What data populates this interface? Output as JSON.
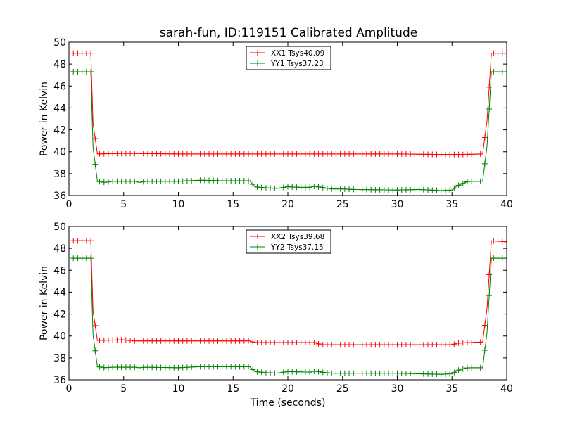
{
  "title": "sarah-fun, ID:119151 Calibrated Amplitude",
  "chart_data": [
    {
      "type": "line",
      "ylabel": "Power in Kelvin",
      "xlabel": "",
      "xlim": [
        0,
        40
      ],
      "ylim": [
        36,
        50
      ],
      "xticks": [
        "0",
        "5",
        "10",
        "15",
        "20",
        "25",
        "30",
        "35",
        "40"
      ],
      "yticks": [
        "36",
        "38",
        "40",
        "42",
        "44",
        "46",
        "48",
        "50"
      ],
      "grid": false,
      "legend": "upper-center",
      "series": [
        {
          "name": "XX1 Tsys40.09",
          "color": "#ff0000",
          "points": [
            [
              0.4,
              49.0
            ],
            [
              2.0,
              49.0
            ],
            [
              2.2,
              42.6
            ],
            [
              2.6,
              39.8
            ],
            [
              5,
              39.85
            ],
            [
              10,
              39.8
            ],
            [
              15,
              39.8
            ],
            [
              20,
              39.8
            ],
            [
              25,
              39.8
            ],
            [
              30,
              39.8
            ],
            [
              34,
              39.75
            ],
            [
              36,
              39.75
            ],
            [
              37.8,
              39.8
            ],
            [
              38.2,
              42.8
            ],
            [
              38.6,
              49.0
            ],
            [
              40,
              49.0
            ]
          ]
        },
        {
          "name": "YY1 Tsys37.23",
          "color": "#008000",
          "points": [
            [
              0.4,
              47.3
            ],
            [
              2.0,
              47.3
            ],
            [
              2.2,
              40.4
            ],
            [
              2.6,
              37.3
            ],
            [
              3.3,
              37.2
            ],
            [
              4,
              37.3
            ],
            [
              6,
              37.3
            ],
            [
              6.5,
              37.2
            ],
            [
              7,
              37.3
            ],
            [
              10,
              37.3
            ],
            [
              12,
              37.4
            ],
            [
              14,
              37.35
            ],
            [
              16.5,
              37.35
            ],
            [
              17,
              36.8
            ],
            [
              18,
              36.7
            ],
            [
              19,
              36.65
            ],
            [
              20,
              36.8
            ],
            [
              21,
              36.75
            ],
            [
              22,
              36.75
            ],
            [
              22.5,
              36.85
            ],
            [
              23,
              36.75
            ],
            [
              24,
              36.6
            ],
            [
              25,
              36.6
            ],
            [
              26,
              36.55
            ],
            [
              30,
              36.5
            ],
            [
              32,
              36.55
            ],
            [
              34,
              36.45
            ],
            [
              35,
              36.5
            ],
            [
              35.5,
              36.9
            ],
            [
              36,
              37.1
            ],
            [
              36.5,
              37.3
            ],
            [
              37.8,
              37.3
            ],
            [
              38.2,
              40.5
            ],
            [
              38.6,
              47.3
            ],
            [
              40,
              47.3
            ]
          ]
        }
      ]
    },
    {
      "type": "line",
      "ylabel": "Power in Kelvin",
      "xlabel": "Time (seconds)",
      "xlim": [
        0,
        40
      ],
      "ylim": [
        36,
        50
      ],
      "xticks": [
        "0",
        "5",
        "10",
        "15",
        "20",
        "25",
        "30",
        "35",
        "40"
      ],
      "yticks": [
        "36",
        "38",
        "40",
        "42",
        "44",
        "46",
        "48",
        "50"
      ],
      "grid": false,
      "legend": "upper-center",
      "series": [
        {
          "name": "XX2 Tsys39.68",
          "color": "#ff0000",
          "points": [
            [
              0.4,
              48.7
            ],
            [
              2.0,
              48.7
            ],
            [
              2.2,
              42.3
            ],
            [
              2.6,
              39.6
            ],
            [
              5,
              39.65
            ],
            [
              6,
              39.55
            ],
            [
              10,
              39.55
            ],
            [
              15,
              39.55
            ],
            [
              16.5,
              39.55
            ],
            [
              17,
              39.4
            ],
            [
              20,
              39.4
            ],
            [
              22.5,
              39.4
            ],
            [
              23,
              39.2
            ],
            [
              30,
              39.2
            ],
            [
              35,
              39.2
            ],
            [
              35.5,
              39.35
            ],
            [
              37.8,
              39.45
            ],
            [
              38.2,
              42.5
            ],
            [
              38.6,
              48.7
            ],
            [
              40,
              48.6
            ]
          ]
        },
        {
          "name": "YY2 Tsys37.15",
          "color": "#008000",
          "points": [
            [
              0.4,
              47.1
            ],
            [
              2.0,
              47.1
            ],
            [
              2.2,
              40.1
            ],
            [
              2.6,
              37.2
            ],
            [
              3.3,
              37.1
            ],
            [
              4,
              37.15
            ],
            [
              6,
              37.15
            ],
            [
              6.5,
              37.1
            ],
            [
              7,
              37.15
            ],
            [
              10,
              37.1
            ],
            [
              12,
              37.2
            ],
            [
              14,
              37.2
            ],
            [
              16.5,
              37.2
            ],
            [
              17,
              36.75
            ],
            [
              18,
              36.65
            ],
            [
              19,
              36.6
            ],
            [
              20,
              36.75
            ],
            [
              22,
              36.7
            ],
            [
              22.5,
              36.8
            ],
            [
              23,
              36.7
            ],
            [
              24,
              36.6
            ],
            [
              30,
              36.6
            ],
            [
              32,
              36.55
            ],
            [
              34,
              36.5
            ],
            [
              35,
              36.55
            ],
            [
              35.5,
              36.85
            ],
            [
              36,
              37.0
            ],
            [
              36.5,
              37.1
            ],
            [
              37.8,
              37.1
            ],
            [
              38.2,
              40.3
            ],
            [
              38.6,
              47.1
            ],
            [
              40,
              47.1
            ]
          ]
        }
      ]
    }
  ]
}
